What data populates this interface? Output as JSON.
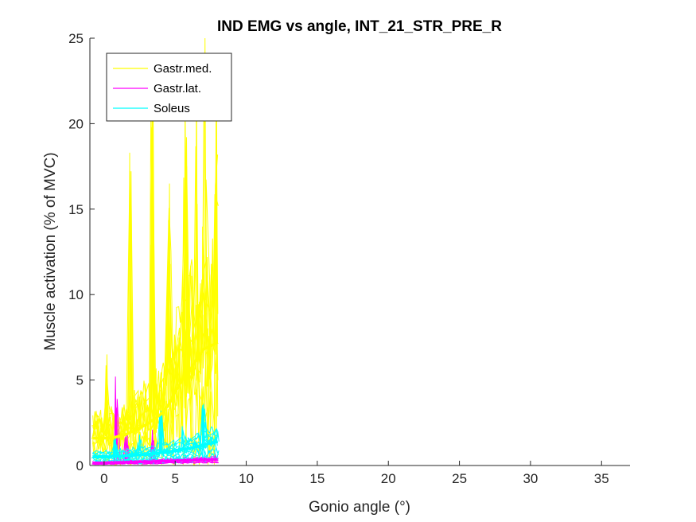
{
  "chart_data": {
    "type": "line",
    "title": "IND EMG vs angle, INT_21_STR_PRE_R",
    "xlabel": "Gonio angle (°)",
    "ylabel": "Muscle activation (% of MVC)",
    "xlim": [
      -1,
      37
    ],
    "ylim": [
      0,
      25
    ],
    "xticks": [
      0,
      5,
      10,
      15,
      20,
      25,
      30,
      35
    ],
    "yticks": [
      0,
      5,
      10,
      15,
      20,
      25
    ],
    "grid": false,
    "legend_position": "top-left",
    "series": [
      {
        "name": "Gastr.med.",
        "color": "#ffff00",
        "mean": {
          "x": [
            -0.8,
            0,
            0.5,
            1,
            1.5,
            2,
            2.5,
            3,
            3.5,
            4,
            4.5,
            5,
            5.5,
            6,
            6.5,
            7,
            7.5,
            8
          ],
          "y": [
            1.6,
            1.6,
            1.6,
            1.7,
            1.8,
            2.0,
            2.2,
            2.4,
            2.7,
            3.0,
            3.5,
            4.3,
            5.0,
            5.5,
            6.2,
            6.8,
            7.0,
            7.2
          ]
        },
        "peaks": [
          {
            "x": 0.2,
            "y": 6.5
          },
          {
            "x": 1.8,
            "y": 18.3
          },
          {
            "x": 3.4,
            "y": 21.5
          },
          {
            "x": 4.6,
            "y": 16.5
          },
          {
            "x": 5.7,
            "y": 21.0
          },
          {
            "x": 6.5,
            "y": 22.5
          },
          {
            "x": 7.1,
            "y": 25.0
          },
          {
            "x": 7.9,
            "y": 24.0
          }
        ]
      },
      {
        "name": "Gastr.lat.",
        "color": "#ff00ff",
        "mean": {
          "x": [
            -0.8,
            0,
            1,
            2,
            3,
            4,
            5,
            6,
            7,
            8
          ],
          "y": [
            0.15,
            0.15,
            0.18,
            0.2,
            0.22,
            0.25,
            0.28,
            0.3,
            0.33,
            0.35
          ]
        },
        "peaks": [
          {
            "x": 0.8,
            "y": 5.2
          },
          {
            "x": 1.6,
            "y": 1.9
          },
          {
            "x": 3.4,
            "y": 2.1
          },
          {
            "x": 7.8,
            "y": 0.6
          }
        ]
      },
      {
        "name": "Soleus",
        "color": "#00ffff",
        "mean": {
          "x": [
            -0.8,
            0,
            1,
            2,
            3,
            4,
            5,
            6,
            7,
            8
          ],
          "y": [
            0.5,
            0.5,
            0.55,
            0.6,
            0.65,
            0.75,
            0.85,
            1.0,
            1.2,
            1.4
          ]
        },
        "peaks": [
          {
            "x": 0.8,
            "y": 1.6
          },
          {
            "x": 2.5,
            "y": 1.8
          },
          {
            "x": 4.0,
            "y": 3.2
          },
          {
            "x": 5.5,
            "y": 2.3
          },
          {
            "x": 7.0,
            "y": 3.6
          },
          {
            "x": 8.0,
            "y": 2.0
          }
        ]
      }
    ]
  }
}
